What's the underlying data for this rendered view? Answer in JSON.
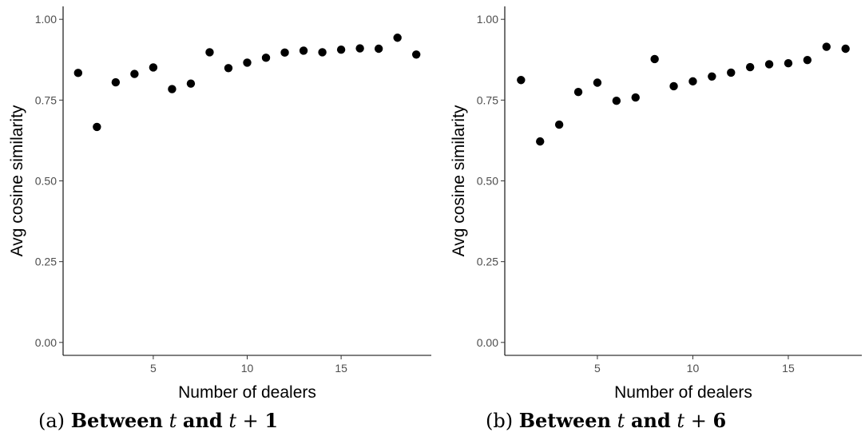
{
  "chart_data": [
    {
      "type": "scatter",
      "xlabel": "Number of dealers",
      "ylabel": "Avg cosine similarity",
      "xlim": [
        0.2,
        19.8
      ],
      "ylim": [
        -0.04,
        1.04
      ],
      "x_ticks": [
        5,
        10,
        15
      ],
      "y_ticks": [
        0.0,
        0.25,
        0.5,
        0.75,
        1.0
      ],
      "x_tick_labels": [
        "5",
        "10",
        "15"
      ],
      "y_tick_labels": [
        "0.00",
        "0.25",
        "0.50",
        "0.75",
        "1.00"
      ],
      "grid": false,
      "point_color": "#000000",
      "x": [
        1,
        2,
        3,
        4,
        5,
        6,
        7,
        8,
        9,
        10,
        11,
        12,
        13,
        14,
        15,
        16,
        17,
        18,
        19
      ],
      "y": [
        0.834,
        0.667,
        0.805,
        0.831,
        0.851,
        0.784,
        0.801,
        0.898,
        0.849,
        0.866,
        0.881,
        0.897,
        0.903,
        0.898,
        0.906,
        0.91,
        0.909,
        0.943,
        0.891
      ],
      "caption": {
        "label": "(a)",
        "w1": "Between",
        "v1": "t",
        "w2": "and",
        "v2": "t",
        "op": "+",
        "num": "1"
      }
    },
    {
      "type": "scatter",
      "xlabel": "Number of dealers",
      "ylabel": "Avg cosine similarity",
      "xlim": [
        0.15,
        18.85
      ],
      "ylim": [
        -0.04,
        1.04
      ],
      "x_ticks": [
        5,
        10,
        15
      ],
      "y_ticks": [
        0.0,
        0.25,
        0.5,
        0.75,
        1.0
      ],
      "x_tick_labels": [
        "5",
        "10",
        "15"
      ],
      "y_tick_labels": [
        "0.00",
        "0.25",
        "0.50",
        "0.75",
        "1.00"
      ],
      "grid": false,
      "point_color": "#000000",
      "x": [
        1,
        2,
        3,
        4,
        5,
        6,
        7,
        8,
        9,
        10,
        11,
        12,
        13,
        14,
        15,
        16,
        17,
        18
      ],
      "y": [
        0.812,
        0.622,
        0.674,
        0.775,
        0.804,
        0.748,
        0.758,
        0.877,
        0.793,
        0.808,
        0.823,
        0.835,
        0.852,
        0.861,
        0.864,
        0.874,
        0.915,
        0.909
      ],
      "caption": {
        "label": "(b)",
        "w1": "Between",
        "v1": "t",
        "w2": "and",
        "v2": "t",
        "op": "+",
        "num": "6"
      }
    }
  ]
}
